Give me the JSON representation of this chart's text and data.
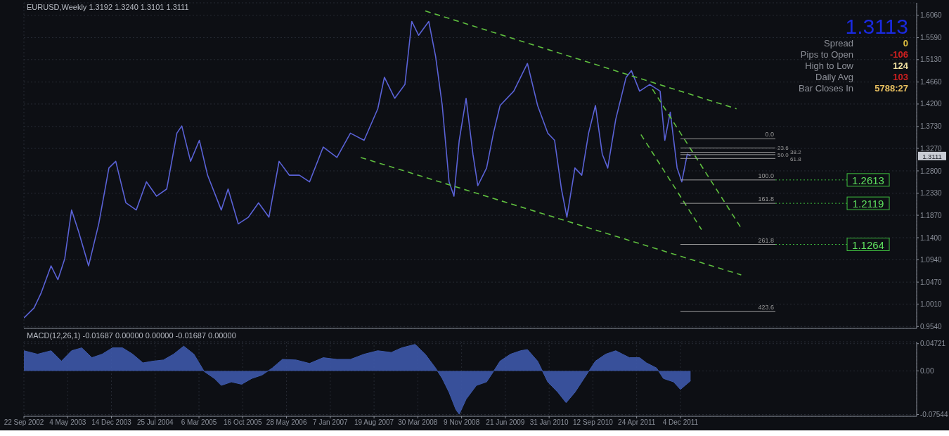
{
  "chart_data": [
    {
      "type": "line",
      "title": "EURUSD,Weekly 1.3192 1.3240 1.3101 1.3111",
      "xlim": [
        "2002-09-22",
        "2015-03-27"
      ],
      "xticks": [
        {
          "value": "2002-09-22",
          "label": null
        },
        {
          "value": "2003-05-04",
          "label": null
        },
        {
          "value": "2003-12-14",
          "label": null
        },
        {
          "value": "2004-07-25",
          "label": null
        },
        {
          "value": "2005-03-06",
          "label": null
        },
        {
          "value": "2005-10-16",
          "label": null
        },
        {
          "value": "2006-05-28",
          "label": null
        },
        {
          "value": "2007-01-07",
          "label": null
        },
        {
          "value": "2007-08-19",
          "label": null
        },
        {
          "value": "2008-03-30",
          "label": null
        },
        {
          "value": "2008-11-09",
          "label": null
        },
        {
          "value": "2009-06-21",
          "label": null
        },
        {
          "value": "2010-01-31",
          "label": null
        },
        {
          "value": "2010-09-12",
          "label": null
        },
        {
          "value": "2011-04-24",
          "label": null
        },
        {
          "value": "2011-12-04",
          "label": null
        }
      ],
      "ylim": [
        0.95,
        1.632
      ],
      "yticks": [
        {
          "value": 0.954,
          "label": "0.9540"
        },
        {
          "value": 1.001,
          "label": "1.0010"
        },
        {
          "value": 1.047,
          "label": "1.0470"
        },
        {
          "value": 1.094,
          "label": "1.0940"
        },
        {
          "value": 1.14,
          "label": "1.1400"
        },
        {
          "value": 1.187,
          "label": "1.1870"
        },
        {
          "value": 1.233,
          "label": "1.2330"
        },
        {
          "value": 1.28,
          "label": "1.2800"
        },
        {
          "value": 1.327,
          "label": "1.3270"
        },
        {
          "value": 1.373,
          "label": "1.3730"
        },
        {
          "value": 1.42,
          "label": "1.4200"
        },
        {
          "value": 1.466,
          "label": "1.4660"
        },
        {
          "value": 1.513,
          "label": "1.5130"
        },
        {
          "value": 1.559,
          "label": "1.5590"
        },
        {
          "value": 1.606,
          "label": "1.6060"
        }
      ],
      "tick_labels": "y",
      "grid": true,
      "legend": false,
      "series": [
        {
          "color": "#5a62d6",
          "x": [
            "2002-09-22",
            "2002-11-13",
            "2002-12-18",
            "2003-02-08",
            "2003-03-15",
            "2003-04-19",
            "2003-05-24",
            "2003-06-28",
            "2003-08-19",
            "2003-10-10",
            "2003-12-01",
            "2004-01-05",
            "2004-02-26",
            "2004-04-19",
            "2004-06-10",
            "2004-08-01",
            "2004-09-22",
            "2004-11-13",
            "2004-12-08",
            "2005-01-22",
            "2005-03-08",
            "2005-04-19",
            "2005-06-28",
            "2005-08-02",
            "2005-09-23",
            "2005-11-14",
            "2006-01-05",
            "2006-02-27",
            "2006-04-20",
            "2006-06-11",
            "2006-08-02",
            "2006-09-23",
            "2006-12-02",
            "2007-02-10",
            "2007-04-20",
            "2007-06-29",
            "2007-09-07",
            "2007-10-11",
            "2007-12-03",
            "2008-01-24",
            "2008-02-28",
            "2008-04-03",
            "2008-05-25",
            "2008-06-29",
            "2008-08-02",
            "2008-09-06",
            "2008-10-01",
            "2008-10-28",
            "2008-12-02",
            "2009-01-06",
            "2009-01-31",
            "2009-03-17",
            "2009-04-21",
            "2009-05-25",
            "2009-08-03",
            "2009-10-12",
            "2009-12-03",
            "2010-01-24",
            "2010-02-28",
            "2010-04-04",
            "2010-05-02",
            "2010-06-12",
            "2010-07-17",
            "2010-08-21",
            "2010-09-25",
            "2010-10-30",
            "2010-11-27",
            "2011-01-07",
            "2011-03-01",
            "2011-03-28",
            "2011-05-09",
            "2011-06-30",
            "2011-08-22",
            "2011-09-15",
            "2011-10-13",
            "2011-11-17",
            "2011-12-11",
            "2012-01-08",
            "2012-01-25"
          ],
          "values": [
            0.972,
            0.993,
            1.023,
            1.081,
            1.052,
            1.096,
            1.198,
            1.154,
            1.081,
            1.169,
            1.286,
            1.3,
            1.213,
            1.198,
            1.257,
            1.227,
            1.242,
            1.359,
            1.374,
            1.3,
            1.344,
            1.271,
            1.198,
            1.242,
            1.169,
            1.183,
            1.213,
            1.183,
            1.3,
            1.271,
            1.271,
            1.257,
            1.33,
            1.308,
            1.359,
            1.344,
            1.41,
            1.476,
            1.432,
            1.461,
            1.593,
            1.564,
            1.593,
            1.52,
            1.417,
            1.257,
            1.227,
            1.344,
            1.432,
            1.315,
            1.249,
            1.286,
            1.359,
            1.417,
            1.447,
            1.505,
            1.417,
            1.359,
            1.344,
            1.242,
            1.183,
            1.286,
            1.271,
            1.359,
            1.417,
            1.315,
            1.286,
            1.388,
            1.476,
            1.49,
            1.447,
            1.461,
            1.447,
            1.344,
            1.403,
            1.286,
            1.257,
            1.315,
            1.311
          ]
        },
        {
          "type": "line",
          "color": "#5fbf3f",
          "line_style": "dashed",
          "x": [
            "2008-05-07",
            "2012-09-16"
          ],
          "values": [
            1.615,
            1.41
          ]
        },
        {
          "type": "line",
          "color": "#5fbf3f",
          "line_style": "dashed",
          "x": [
            "2007-06-12",
            "2012-10-10"
          ],
          "values": [
            1.308,
            1.062
          ]
        },
        {
          "type": "line",
          "color": "#5fbf3f",
          "line_style": "dashed",
          "x": [
            "2011-07-14",
            "2012-10-07"
          ],
          "values": [
            1.451,
            1.162
          ]
        },
        {
          "type": "line",
          "color": "#5fbf3f",
          "line_style": "dashed",
          "x": [
            "2011-05-16",
            "2012-03-21"
          ],
          "values": [
            1.356,
            1.157
          ]
        },
        {
          "type": "line",
          "name": "0.0",
          "color": "#9a9a9a",
          "x": [
            "2011-12-04",
            "2013-04-03"
          ],
          "values": [
            1.347,
            1.347
          ]
        },
        {
          "type": "line",
          "name": "23.6",
          "color": "#9a9a9a",
          "x": [
            "2011-12-04",
            "2013-04-03"
          ],
          "values": [
            1.328,
            1.328
          ]
        },
        {
          "type": "line",
          "name": "38.2",
          "color": "#9a9a9a",
          "x": [
            "2011-12-04",
            "2013-04-03"
          ],
          "values": [
            1.319,
            1.319
          ]
        },
        {
          "type": "line",
          "name": "50.0",
          "color": "#9a9a9a",
          "x": [
            "2011-12-04",
            "2013-04-03"
          ],
          "values": [
            1.314,
            1.314
          ]
        },
        {
          "type": "line",
          "name": "61.8",
          "color": "#9a9a9a",
          "x": [
            "2011-12-04",
            "2013-04-03"
          ],
          "values": [
            1.306,
            1.306
          ]
        },
        {
          "type": "line",
          "name": "100.0",
          "color": "#9a9a9a",
          "x": [
            "2011-12-04",
            "2013-04-03"
          ],
          "values": [
            1.261,
            1.261
          ]
        },
        {
          "type": "line",
          "name": "161.8",
          "color": "#9a9a9a",
          "x": [
            "2011-12-04",
            "2013-04-03"
          ],
          "values": [
            1.212,
            1.212
          ]
        },
        {
          "type": "line",
          "name": "261.8",
          "color": "#9a9a9a",
          "x": [
            "2011-12-04",
            "2013-04-03"
          ],
          "values": [
            1.126,
            1.126
          ]
        },
        {
          "type": "line",
          "name": "423.6",
          "color": "#9a9a9a",
          "x": [
            "2011-12-04",
            "2013-04-03"
          ],
          "values": [
            0.986,
            0.986
          ]
        }
      ],
      "annotations": [
        "1.3113",
        "Spread",
        "0",
        "Pips to Open",
        "-106",
        "High to Low",
        "124",
        "Daily Avg",
        "103",
        "Bar Closes In",
        "5788:27",
        {
          "text": "1.2613",
          "x": "2013-04-03",
          "y": 1.261
        },
        {
          "text": "1.2119",
          "x": "2013-04-03",
          "y": 1.212
        },
        {
          "text": "1.1264",
          "x": "2013-04-03",
          "y": 1.126
        },
        {
          "text": "1.3111",
          "y": 1.3111
        }
      ]
    },
    {
      "type": "area",
      "title": "MACD(12,26,1) -0.01687 0.00000 0.00000 -0.01687 0.00000",
      "xlim": [
        "2002-09-22",
        "2015-03-27"
      ],
      "xticks": [
        {
          "value": "2002-09-22",
          "label": "22 Sep 2002"
        },
        {
          "value": "2003-05-04",
          "label": "4 May 2003"
        },
        {
          "value": "2003-12-14",
          "label": "14 Dec 2003"
        },
        {
          "value": "2004-07-25",
          "label": "25 Jul 2004"
        },
        {
          "value": "2005-03-06",
          "label": "6 Mar 2005"
        },
        {
          "value": "2005-10-16",
          "label": "16 Oct 2005"
        },
        {
          "value": "2006-05-28",
          "label": "28 May 2006"
        },
        {
          "value": "2007-01-07",
          "label": "7 Jan 2007"
        },
        {
          "value": "2007-08-19",
          "label": "19 Aug 2007"
        },
        {
          "value": "2008-03-30",
          "label": "30 Mar 2008"
        },
        {
          "value": "2008-11-09",
          "label": "9 Nov 2008"
        },
        {
          "value": "2009-06-21",
          "label": "21 Jun 2009"
        },
        {
          "value": "2010-01-31",
          "label": "31 Jan 2010"
        },
        {
          "value": "2010-09-12",
          "label": "12 Sep 2010"
        },
        {
          "value": "2011-04-24",
          "label": "24 Apr 2011"
        },
        {
          "value": "2011-12-04",
          "label": "4 Dec 2011"
        }
      ],
      "ylim": [
        -0.0785,
        0.0505
      ],
      "yticks": [
        -0.07544,
        {
          "value": 0,
          "label": "0.00"
        },
        0.04721
      ],
      "grid": true,
      "legend": false,
      "series": [
        {
          "color": "#3d58a8",
          "x": [
            "2002-09-22",
            "2002-12-01",
            "2003-02-08",
            "2003-04-02",
            "2003-05-24",
            "2003-07-15",
            "2003-09-05",
            "2003-10-27",
            "2003-12-19",
            "2004-02-09",
            "2004-04-01",
            "2004-05-23",
            "2004-07-15",
            "2004-09-05",
            "2004-10-27",
            "2004-12-18",
            "2005-02-08",
            "2005-04-02",
            "2005-05-24",
            "2005-06-28",
            "2005-08-19",
            "2005-10-10",
            "2005-12-01",
            "2006-01-23",
            "2006-03-16",
            "2006-05-07",
            "2006-07-16",
            "2006-09-23",
            "2006-12-02",
            "2007-02-10",
            "2007-04-20",
            "2007-06-29",
            "2007-09-07",
            "2007-11-15",
            "2008-01-07",
            "2008-03-16",
            "2008-05-07",
            "2008-06-29",
            "2008-08-02",
            "2008-09-06",
            "2008-10-11",
            "2008-10-28",
            "2008-12-02",
            "2009-01-24",
            "2009-03-17",
            "2009-04-21",
            "2009-05-25",
            "2009-07-17",
            "2009-09-07",
            "2009-10-12",
            "2009-12-03",
            "2010-01-24",
            "2010-03-17",
            "2010-04-28",
            "2010-06-12",
            "2010-07-17",
            "2010-08-21",
            "2010-09-25",
            "2010-11-16",
            "2011-01-07",
            "2011-02-11",
            "2011-03-18",
            "2011-05-09",
            "2011-06-13",
            "2011-08-04",
            "2011-09-08",
            "2011-10-30",
            "2011-12-04",
            "2012-01-25"
          ],
          "values": [
            0.035,
            0.029,
            0.035,
            0.017,
            0.035,
            0.04,
            0.023,
            0.029,
            0.04,
            0.04,
            0.029,
            0.014,
            0.017,
            0.019,
            0.029,
            0.043,
            0.029,
            -0.001,
            -0.013,
            -0.025,
            -0.019,
            -0.023,
            -0.013,
            -0.007,
            0.005,
            0.02,
            0.019,
            0.013,
            0.023,
            0.02,
            0.02,
            0.029,
            0.035,
            0.032,
            0.04,
            0.046,
            0.029,
            0.005,
            -0.013,
            -0.037,
            -0.067,
            -0.075,
            -0.049,
            -0.025,
            -0.019,
            -0.001,
            0.017,
            0.029,
            0.035,
            0.037,
            0.017,
            -0.019,
            -0.037,
            -0.055,
            -0.037,
            -0.019,
            -0.001,
            0.017,
            0.029,
            0.035,
            0.029,
            0.023,
            0.023,
            0.014,
            0.005,
            -0.013,
            -0.019,
            -0.032,
            -0.017
          ]
        }
      ]
    }
  ]
}
